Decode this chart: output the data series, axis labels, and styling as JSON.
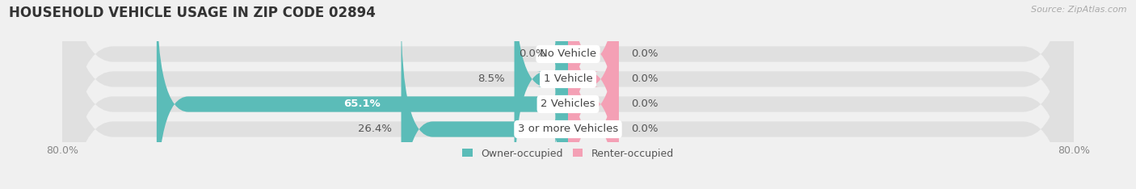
{
  "title": "HOUSEHOLD VEHICLE USAGE IN ZIP CODE 02894",
  "source": "Source: ZipAtlas.com",
  "categories": [
    "No Vehicle",
    "1 Vehicle",
    "2 Vehicles",
    "3 or more Vehicles"
  ],
  "owner_values": [
    0.0,
    8.5,
    65.1,
    26.4
  ],
  "renter_values": [
    0.0,
    0.0,
    0.0,
    0.0
  ],
  "owner_color": "#5bbcb8",
  "renter_color": "#f4a0b5",
  "renter_stub": 8.0,
  "owner_label": "Owner-occupied",
  "renter_label": "Renter-occupied",
  "xlim_left": -80,
  "xlim_right": 80,
  "background_color": "#f0f0f0",
  "bar_bg_color": "#e0e0e0",
  "bar_height": 0.62,
  "bar_gap": 0.12,
  "title_fontsize": 12,
  "label_fontsize": 9.5,
  "tick_fontsize": 9
}
